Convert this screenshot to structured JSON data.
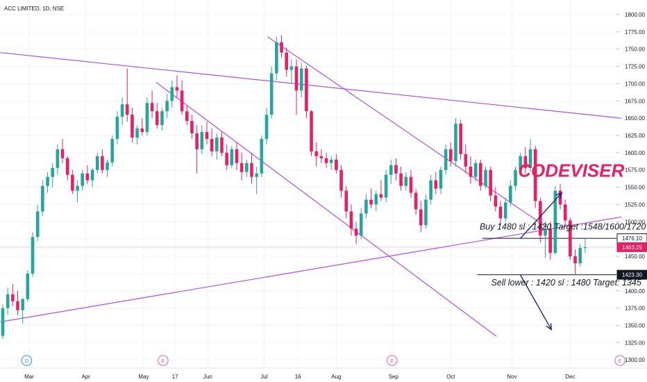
{
  "header": {
    "symbol_label": "ACC LIMITED, 1D, NSE"
  },
  "chart_data": {
    "type": "candlestick",
    "title": "ACC LIMITED, 1D, NSE",
    "ylim": [
      1290,
      1815
    ],
    "y_ticks": [
      1300,
      1325,
      1350,
      1375,
      1400,
      1425,
      1450,
      1475,
      1500,
      1525,
      1550,
      1575,
      1600,
      1625,
      1650,
      1675,
      1700,
      1725,
      1750,
      1775,
      1800
    ],
    "x_ticks": [
      "Mar",
      "Apr",
      "May",
      "17",
      "Jun",
      "Jul",
      "16",
      "Aug",
      "Sep",
      "Oct",
      "Nov",
      "Dec"
    ],
    "grid": true,
    "up_color": "#26a69a",
    "down_color": "#e91e63",
    "candles": [
      {
        "o": 1335,
        "h": 1380,
        "l": 1330,
        "c": 1375
      },
      {
        "o": 1375,
        "h": 1405,
        "l": 1365,
        "c": 1395
      },
      {
        "o": 1395,
        "h": 1410,
        "l": 1378,
        "c": 1385
      },
      {
        "o": 1385,
        "h": 1400,
        "l": 1365,
        "c": 1372
      },
      {
        "o": 1372,
        "h": 1390,
        "l": 1352,
        "c": 1388
      },
      {
        "o": 1388,
        "h": 1430,
        "l": 1384,
        "c": 1425
      },
      {
        "o": 1425,
        "h": 1485,
        "l": 1420,
        "c": 1478
      },
      {
        "o": 1478,
        "h": 1525,
        "l": 1472,
        "c": 1515
      },
      {
        "o": 1515,
        "h": 1560,
        "l": 1508,
        "c": 1552
      },
      {
        "o": 1552,
        "h": 1572,
        "l": 1542,
        "c": 1565
      },
      {
        "o": 1565,
        "h": 1585,
        "l": 1550,
        "c": 1578
      },
      {
        "o": 1578,
        "h": 1612,
        "l": 1568,
        "c": 1605
      },
      {
        "o": 1605,
        "h": 1620,
        "l": 1585,
        "c": 1592
      },
      {
        "o": 1592,
        "h": 1595,
        "l": 1560,
        "c": 1568
      },
      {
        "o": 1568,
        "h": 1575,
        "l": 1540,
        "c": 1545
      },
      {
        "o": 1545,
        "h": 1560,
        "l": 1528,
        "c": 1552
      },
      {
        "o": 1552,
        "h": 1575,
        "l": 1545,
        "c": 1570
      },
      {
        "o": 1570,
        "h": 1582,
        "l": 1555,
        "c": 1560
      },
      {
        "o": 1560,
        "h": 1578,
        "l": 1550,
        "c": 1575
      },
      {
        "o": 1575,
        "h": 1600,
        "l": 1570,
        "c": 1595
      },
      {
        "o": 1595,
        "h": 1605,
        "l": 1570,
        "c": 1575
      },
      {
        "o": 1575,
        "h": 1590,
        "l": 1565,
        "c": 1586
      },
      {
        "o": 1586,
        "h": 1625,
        "l": 1580,
        "c": 1620
      },
      {
        "o": 1620,
        "h": 1660,
        "l": 1612,
        "c": 1652
      },
      {
        "o": 1652,
        "h": 1680,
        "l": 1640,
        "c": 1670
      },
      {
        "o": 1670,
        "h": 1722,
        "l": 1645,
        "c": 1655
      },
      {
        "o": 1655,
        "h": 1665,
        "l": 1615,
        "c": 1622
      },
      {
        "o": 1622,
        "h": 1640,
        "l": 1612,
        "c": 1635
      },
      {
        "o": 1635,
        "h": 1650,
        "l": 1625,
        "c": 1630
      },
      {
        "o": 1630,
        "h": 1680,
        "l": 1625,
        "c": 1672
      },
      {
        "o": 1672,
        "h": 1690,
        "l": 1650,
        "c": 1660
      },
      {
        "o": 1660,
        "h": 1672,
        "l": 1635,
        "c": 1640
      },
      {
        "o": 1640,
        "h": 1665,
        "l": 1632,
        "c": 1660
      },
      {
        "o": 1660,
        "h": 1685,
        "l": 1650,
        "c": 1675
      },
      {
        "o": 1675,
        "h": 1705,
        "l": 1665,
        "c": 1695
      },
      {
        "o": 1695,
        "h": 1712,
        "l": 1680,
        "c": 1690
      },
      {
        "o": 1690,
        "h": 1705,
        "l": 1655,
        "c": 1660
      },
      {
        "o": 1660,
        "h": 1668,
        "l": 1640,
        "c": 1646
      },
      {
        "o": 1646,
        "h": 1655,
        "l": 1620,
        "c": 1628
      },
      {
        "o": 1628,
        "h": 1640,
        "l": 1570,
        "c": 1605
      },
      {
        "o": 1605,
        "h": 1640,
        "l": 1598,
        "c": 1630
      },
      {
        "o": 1630,
        "h": 1645,
        "l": 1612,
        "c": 1620
      },
      {
        "o": 1620,
        "h": 1635,
        "l": 1595,
        "c": 1602
      },
      {
        "o": 1602,
        "h": 1628,
        "l": 1590,
        "c": 1622
      },
      {
        "o": 1622,
        "h": 1630,
        "l": 1595,
        "c": 1600
      },
      {
        "o": 1600,
        "h": 1612,
        "l": 1575,
        "c": 1582
      },
      {
        "o": 1582,
        "h": 1610,
        "l": 1578,
        "c": 1605
      },
      {
        "o": 1605,
        "h": 1615,
        "l": 1575,
        "c": 1585
      },
      {
        "o": 1585,
        "h": 1600,
        "l": 1560,
        "c": 1572
      },
      {
        "o": 1572,
        "h": 1590,
        "l": 1565,
        "c": 1585
      },
      {
        "o": 1585,
        "h": 1600,
        "l": 1555,
        "c": 1565
      },
      {
        "o": 1565,
        "h": 1580,
        "l": 1540,
        "c": 1570
      },
      {
        "o": 1570,
        "h": 1625,
        "l": 1565,
        "c": 1620
      },
      {
        "o": 1620,
        "h": 1665,
        "l": 1612,
        "c": 1655
      },
      {
        "o": 1655,
        "h": 1725,
        "l": 1650,
        "c": 1715
      },
      {
        "o": 1715,
        "h": 1768,
        "l": 1705,
        "c": 1760
      },
      {
        "o": 1760,
        "h": 1770,
        "l": 1738,
        "c": 1745
      },
      {
        "o": 1745,
        "h": 1752,
        "l": 1710,
        "c": 1720
      },
      {
        "o": 1720,
        "h": 1735,
        "l": 1700,
        "c": 1725
      },
      {
        "o": 1725,
        "h": 1735,
        "l": 1655,
        "c": 1690
      },
      {
        "o": 1690,
        "h": 1730,
        "l": 1680,
        "c": 1722
      },
      {
        "o": 1722,
        "h": 1726,
        "l": 1650,
        "c": 1660
      },
      {
        "o": 1660,
        "h": 1662,
        "l": 1595,
        "c": 1602
      },
      {
        "o": 1602,
        "h": 1615,
        "l": 1580,
        "c": 1595
      },
      {
        "o": 1595,
        "h": 1605,
        "l": 1585,
        "c": 1592
      },
      {
        "o": 1592,
        "h": 1600,
        "l": 1578,
        "c": 1585
      },
      {
        "o": 1585,
        "h": 1595,
        "l": 1575,
        "c": 1590
      },
      {
        "o": 1590,
        "h": 1598,
        "l": 1570,
        "c": 1575
      },
      {
        "o": 1575,
        "h": 1582,
        "l": 1535,
        "c": 1545
      },
      {
        "o": 1545,
        "h": 1552,
        "l": 1505,
        "c": 1515
      },
      {
        "o": 1515,
        "h": 1525,
        "l": 1480,
        "c": 1490
      },
      {
        "o": 1490,
        "h": 1500,
        "l": 1468,
        "c": 1480
      },
      {
        "o": 1480,
        "h": 1520,
        "l": 1475,
        "c": 1512
      },
      {
        "o": 1512,
        "h": 1540,
        "l": 1505,
        "c": 1532
      },
      {
        "o": 1532,
        "h": 1548,
        "l": 1520,
        "c": 1525
      },
      {
        "o": 1525,
        "h": 1545,
        "l": 1515,
        "c": 1540
      },
      {
        "o": 1540,
        "h": 1560,
        "l": 1530,
        "c": 1535
      },
      {
        "o": 1535,
        "h": 1575,
        "l": 1528,
        "c": 1568
      },
      {
        "o": 1568,
        "h": 1590,
        "l": 1555,
        "c": 1582
      },
      {
        "o": 1582,
        "h": 1592,
        "l": 1560,
        "c": 1570
      },
      {
        "o": 1570,
        "h": 1580,
        "l": 1545,
        "c": 1552
      },
      {
        "o": 1552,
        "h": 1572,
        "l": 1545,
        "c": 1565
      },
      {
        "o": 1565,
        "h": 1575,
        "l": 1535,
        "c": 1542
      },
      {
        "o": 1542,
        "h": 1548,
        "l": 1510,
        "c": 1518
      },
      {
        "o": 1518,
        "h": 1530,
        "l": 1485,
        "c": 1495
      },
      {
        "o": 1495,
        "h": 1540,
        "l": 1490,
        "c": 1532
      },
      {
        "o": 1532,
        "h": 1568,
        "l": 1525,
        "c": 1560
      },
      {
        "o": 1560,
        "h": 1572,
        "l": 1540,
        "c": 1548
      },
      {
        "o": 1548,
        "h": 1580,
        "l": 1540,
        "c": 1575
      },
      {
        "o": 1575,
        "h": 1612,
        "l": 1568,
        "c": 1605
      },
      {
        "o": 1605,
        "h": 1615,
        "l": 1580,
        "c": 1588
      },
      {
        "o": 1588,
        "h": 1650,
        "l": 1580,
        "c": 1642
      },
      {
        "o": 1642,
        "h": 1648,
        "l": 1590,
        "c": 1598
      },
      {
        "o": 1598,
        "h": 1612,
        "l": 1570,
        "c": 1580
      },
      {
        "o": 1580,
        "h": 1595,
        "l": 1555,
        "c": 1565
      },
      {
        "o": 1565,
        "h": 1590,
        "l": 1558,
        "c": 1585
      },
      {
        "o": 1585,
        "h": 1590,
        "l": 1545,
        "c": 1552
      },
      {
        "o": 1552,
        "h": 1580,
        "l": 1548,
        "c": 1575
      },
      {
        "o": 1575,
        "h": 1580,
        "l": 1530,
        "c": 1538
      },
      {
        "o": 1538,
        "h": 1550,
        "l": 1515,
        "c": 1522
      },
      {
        "o": 1522,
        "h": 1530,
        "l": 1495,
        "c": 1505
      },
      {
        "o": 1505,
        "h": 1535,
        "l": 1500,
        "c": 1528
      },
      {
        "o": 1528,
        "h": 1560,
        "l": 1522,
        "c": 1552
      },
      {
        "o": 1552,
        "h": 1580,
        "l": 1545,
        "c": 1575
      },
      {
        "o": 1575,
        "h": 1600,
        "l": 1568,
        "c": 1595
      },
      {
        "o": 1595,
        "h": 1608,
        "l": 1570,
        "c": 1578
      },
      {
        "o": 1578,
        "h": 1620,
        "l": 1572,
        "c": 1605
      },
      {
        "o": 1605,
        "h": 1610,
        "l": 1520,
        "c": 1530
      },
      {
        "o": 1530,
        "h": 1535,
        "l": 1470,
        "c": 1480
      },
      {
        "o": 1480,
        "h": 1500,
        "l": 1448,
        "c": 1490
      },
      {
        "o": 1490,
        "h": 1500,
        "l": 1445,
        "c": 1455
      },
      {
        "o": 1455,
        "h": 1552,
        "l": 1452,
        "c": 1545
      },
      {
        "o": 1545,
        "h": 1555,
        "l": 1518,
        "c": 1525
      },
      {
        "o": 1525,
        "h": 1532,
        "l": 1495,
        "c": 1502
      },
      {
        "o": 1502,
        "h": 1506,
        "l": 1445,
        "c": 1450
      },
      {
        "o": 1450,
        "h": 1460,
        "l": 1423,
        "c": 1440
      },
      {
        "o": 1440,
        "h": 1468,
        "l": 1435,
        "c": 1462
      },
      {
        "o": 1462,
        "h": 1476,
        "l": 1455,
        "c": 1463
      }
    ],
    "trend_lines": [
      {
        "d1": -0.5,
        "p1": 1745,
        "d2": 124.3,
        "p2": 1650
      },
      {
        "d1": -0.5,
        "p1": 1355,
        "d2": 124.3,
        "p2": 1507
      },
      {
        "d1": 53.2,
        "p1": 1768,
        "d2": 109.5,
        "p2": 1491
      },
      {
        "d1": 30.8,
        "p1": 1702,
        "d2": 99.2,
        "p2": 1334
      }
    ],
    "hlines": [
      {
        "y": 1476.1,
        "d1": 96.3,
        "d2": 124.3,
        "color": "#131722"
      },
      {
        "y": 1423.3,
        "d1": 95.3,
        "d2": 124.3,
        "color": "#131722"
      },
      {
        "y": 1463.25,
        "d1": -0.5,
        "d2": 124.3,
        "color": "#e040fb",
        "dotted": true
      }
    ],
    "arrows": [
      {
        "from_d": 104,
        "from_p": 1476,
        "to_d": 112.3,
        "to_p": 1542
      },
      {
        "from_d": 104,
        "from_p": 1423,
        "to_d": 110.2,
        "to_p": 1344
      }
    ],
    "price_labels": [
      {
        "value": "1476.10",
        "y": 1476.1,
        "bg": "#ffffff",
        "fg": "#131722",
        "border": "#131722"
      },
      {
        "value": "1463.25",
        "y": 1463.25,
        "bg": "#e91e63",
        "fg": "#ffffff",
        "border": "#e91e63"
      },
      {
        "value": "1423.30",
        "y": 1423.3,
        "bg": "#131722",
        "fg": "#ffffff",
        "border": "#131722"
      }
    ],
    "annotations": [
      {
        "id": "buy",
        "text": "Buy 1480 sl : 1420 Target :1548/1600/1720",
        "d": 112.5,
        "p": 1489
      },
      {
        "id": "sell",
        "text": "Sell lower : 1420 sl : 1480 Target: 1345",
        "d": 113.2,
        "p": 1408
      },
      {
        "id": "watermark",
        "text": "CODEVISER",
        "d": 114.2,
        "p": 1565
      }
    ],
    "event_badges": [
      {
        "letter": "D",
        "color": "#2196f3",
        "d": 4.8
      },
      {
        "letter": "E",
        "color": "#f06292",
        "d": 32.2
      },
      {
        "letter": "E",
        "color": "#f06292",
        "d": 78.2
      },
      {
        "letter": "E",
        "color": "#f06292",
        "d": 124
      }
    ]
  }
}
